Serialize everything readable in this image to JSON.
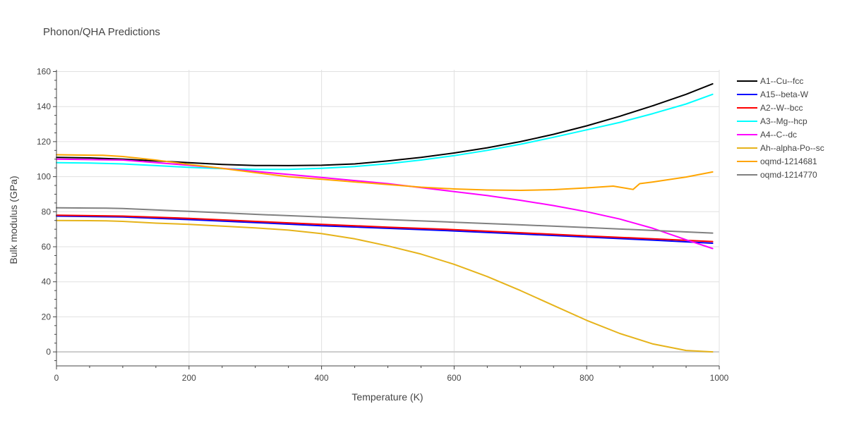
{
  "chart_data": {
    "type": "line",
    "title": "Phonon/QHA Predictions",
    "xlabel": "Temperature (K)",
    "ylabel": "Bulk modulus (GPa)",
    "xlim": [
      0,
      1000
    ],
    "ylim": [
      -8,
      161
    ],
    "xticks": [
      0,
      200,
      400,
      600,
      800,
      1000
    ],
    "yticks": [
      0,
      20,
      40,
      60,
      80,
      100,
      120,
      140,
      160
    ],
    "grid": true,
    "legend_position": "top-right",
    "series": [
      {
        "name": "A1--Cu--fcc",
        "color": "#000000",
        "x": [
          0,
          50,
          100,
          150,
          200,
          250,
          300,
          350,
          400,
          450,
          500,
          550,
          600,
          650,
          700,
          750,
          800,
          850,
          900,
          950,
          990
        ],
        "y": [
          111,
          110.7,
          110,
          109,
          108,
          107,
          106.4,
          106.3,
          106.5,
          107.3,
          109,
          111,
          113.5,
          116.5,
          120,
          124.2,
          129,
          134.5,
          140.5,
          147,
          153
        ]
      },
      {
        "name": "A15--beta-W",
        "color": "#0000ff",
        "x": [
          0,
          100,
          200,
          300,
          400,
          500,
          600,
          700,
          800,
          900,
          990
        ],
        "y": [
          77.5,
          77,
          75.5,
          73.8,
          72,
          70.5,
          69,
          67.3,
          65.5,
          63.8,
          62
        ]
      },
      {
        "name": "A2--W--bcc",
        "color": "#ff0000",
        "x": [
          0,
          100,
          200,
          300,
          400,
          500,
          600,
          700,
          800,
          900,
          990
        ],
        "y": [
          78,
          77.5,
          76.2,
          74.5,
          72.8,
          71.2,
          69.8,
          68,
          66.2,
          64.5,
          63
        ]
      },
      {
        "name": "A3--Mg--hcp",
        "color": "#00ffff",
        "x": [
          0,
          50,
          100,
          150,
          200,
          250,
          300,
          350,
          400,
          450,
          500,
          550,
          600,
          650,
          700,
          750,
          800,
          850,
          900,
          950,
          990
        ],
        "y": [
          108,
          107.8,
          107.3,
          106.3,
          105.3,
          104.6,
          104.2,
          104.2,
          104.8,
          105.8,
          107.4,
          109.5,
          112,
          115,
          118.5,
          122.5,
          126.7,
          131,
          136,
          141.5,
          147
        ]
      },
      {
        "name": "A4--C--dc",
        "color": "#ff00ff",
        "x": [
          0,
          100,
          200,
          300,
          400,
          500,
          600,
          650,
          700,
          750,
          800,
          850,
          900,
          950,
          990
        ],
        "y": [
          110,
          109.5,
          106.5,
          103,
          99.5,
          96,
          91.5,
          89.2,
          86.5,
          83.5,
          80,
          75.8,
          70.5,
          64,
          59
        ]
      },
      {
        "name": "Ah--alpha-Po--sc",
        "color": "#e6b31a",
        "x": [
          0,
          75,
          100,
          150,
          200,
          250,
          300,
          350,
          400,
          450,
          500,
          550,
          600,
          650,
          700,
          750,
          800,
          850,
          900,
          950,
          990
        ],
        "y": [
          75,
          74.8,
          74.5,
          73.5,
          72.8,
          71.8,
          70.8,
          69.5,
          67.5,
          64.5,
          60.5,
          55.8,
          50,
          43,
          35,
          26.5,
          18,
          10.5,
          4.5,
          0.8,
          0
        ]
      },
      {
        "name": "oqmd-1214681",
        "color": "#ffa500",
        "x": [
          0,
          70,
          100,
          150,
          200,
          250,
          300,
          350,
          400,
          450,
          500,
          550,
          600,
          650,
          700,
          750,
          800,
          840,
          870,
          880,
          900,
          950,
          990
        ],
        "y": [
          112.5,
          112.2,
          111.5,
          109.5,
          107,
          104.7,
          102.3,
          100,
          98.5,
          97,
          95.5,
          94,
          93,
          92.4,
          92.2,
          92.6,
          93.6,
          94.6,
          92.7,
          96,
          97,
          99.8,
          102.7
        ]
      },
      {
        "name": "oqmd-1214770",
        "color": "#808080",
        "x": [
          0,
          75,
          100,
          200,
          300,
          400,
          500,
          600,
          700,
          800,
          900,
          990
        ],
        "y": [
          82.2,
          82,
          81.8,
          80.2,
          78.5,
          77,
          75.5,
          74,
          72.5,
          71,
          69.3,
          67.8
        ]
      }
    ]
  }
}
